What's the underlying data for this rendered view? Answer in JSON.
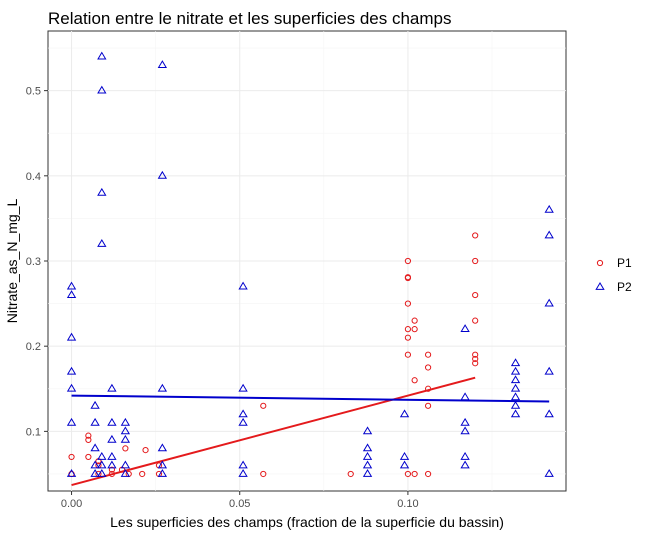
{
  "chart_data": {
    "type": "scatter",
    "title": "Relation entre le nitrate et les superficies des champs",
    "xlabel": "Les superficies des champs (fraction de la superficie du bassin)",
    "ylabel": "Nitrate_as_N_mg_L",
    "xlim": [
      -0.007,
      0.147
    ],
    "ylim": [
      0.03,
      0.57
    ],
    "x_ticks": [
      0.0,
      0.05,
      0.1
    ],
    "x_tick_labels": [
      "0.00",
      "0.05",
      "0.10"
    ],
    "y_ticks": [
      0.1,
      0.2,
      0.3,
      0.4,
      0.5
    ],
    "y_tick_labels": [
      "0.1",
      "0.2",
      "0.3",
      "0.4",
      "0.5"
    ],
    "grid": true,
    "legend_position": "right",
    "series": [
      {
        "name": "P1",
        "color": "#e41a1c",
        "marker": "circle",
        "points": [
          [
            0.0,
            0.05
          ],
          [
            0.0,
            0.07
          ],
          [
            0.005,
            0.07
          ],
          [
            0.005,
            0.09
          ],
          [
            0.005,
            0.095
          ],
          [
            0.008,
            0.06
          ],
          [
            0.008,
            0.065
          ],
          [
            0.008,
            0.05
          ],
          [
            0.012,
            0.05
          ],
          [
            0.012,
            0.055
          ],
          [
            0.015,
            0.055
          ],
          [
            0.016,
            0.08
          ],
          [
            0.017,
            0.05
          ],
          [
            0.021,
            0.05
          ],
          [
            0.022,
            0.078
          ],
          [
            0.026,
            0.05
          ],
          [
            0.026,
            0.06
          ],
          [
            0.057,
            0.13
          ],
          [
            0.057,
            0.05
          ],
          [
            0.083,
            0.05
          ],
          [
            0.1,
            0.3
          ],
          [
            0.1,
            0.28
          ],
          [
            0.1,
            0.281
          ],
          [
            0.1,
            0.25
          ],
          [
            0.1,
            0.22
          ],
          [
            0.1,
            0.21
          ],
          [
            0.1,
            0.19
          ],
          [
            0.1,
            0.05
          ],
          [
            0.102,
            0.23
          ],
          [
            0.102,
            0.22
          ],
          [
            0.102,
            0.16
          ],
          [
            0.102,
            0.05
          ],
          [
            0.106,
            0.19
          ],
          [
            0.106,
            0.175
          ],
          [
            0.106,
            0.15
          ],
          [
            0.106,
            0.13
          ],
          [
            0.106,
            0.05
          ],
          [
            0.12,
            0.33
          ],
          [
            0.12,
            0.3
          ],
          [
            0.12,
            0.26
          ],
          [
            0.12,
            0.23
          ],
          [
            0.12,
            0.19
          ],
          [
            0.12,
            0.185
          ],
          [
            0.12,
            0.18
          ]
        ],
        "trend": {
          "x": [
            0.0,
            0.12
          ],
          "y": [
            0.037,
            0.163
          ]
        }
      },
      {
        "name": "P2",
        "color": "#0000cc",
        "marker": "triangle",
        "points": [
          [
            0.0,
            0.27
          ],
          [
            0.0,
            0.26
          ],
          [
            0.0,
            0.21
          ],
          [
            0.0,
            0.17
          ],
          [
            0.0,
            0.15
          ],
          [
            0.0,
            0.11
          ],
          [
            0.0,
            0.05
          ],
          [
            0.009,
            0.54
          ],
          [
            0.009,
            0.5
          ],
          [
            0.009,
            0.38
          ],
          [
            0.009,
            0.32
          ],
          [
            0.007,
            0.13
          ],
          [
            0.007,
            0.11
          ],
          [
            0.007,
            0.08
          ],
          [
            0.007,
            0.06
          ],
          [
            0.007,
            0.05
          ],
          [
            0.009,
            0.07
          ],
          [
            0.009,
            0.06
          ],
          [
            0.009,
            0.05
          ],
          [
            0.012,
            0.15
          ],
          [
            0.012,
            0.11
          ],
          [
            0.012,
            0.09
          ],
          [
            0.012,
            0.07
          ],
          [
            0.012,
            0.06
          ],
          [
            0.016,
            0.11
          ],
          [
            0.016,
            0.1
          ],
          [
            0.016,
            0.09
          ],
          [
            0.016,
            0.06
          ],
          [
            0.016,
            0.05
          ],
          [
            0.027,
            0.53
          ],
          [
            0.027,
            0.4
          ],
          [
            0.027,
            0.15
          ],
          [
            0.027,
            0.08
          ],
          [
            0.027,
            0.06
          ],
          [
            0.027,
            0.05
          ],
          [
            0.051,
            0.27
          ],
          [
            0.051,
            0.15
          ],
          [
            0.051,
            0.12
          ],
          [
            0.051,
            0.11
          ],
          [
            0.051,
            0.06
          ],
          [
            0.051,
            0.05
          ],
          [
            0.088,
            0.1
          ],
          [
            0.088,
            0.08
          ],
          [
            0.088,
            0.07
          ],
          [
            0.088,
            0.06
          ],
          [
            0.088,
            0.05
          ],
          [
            0.099,
            0.12
          ],
          [
            0.099,
            0.07
          ],
          [
            0.099,
            0.06
          ],
          [
            0.117,
            0.22
          ],
          [
            0.117,
            0.14
          ],
          [
            0.117,
            0.11
          ],
          [
            0.117,
            0.1
          ],
          [
            0.117,
            0.07
          ],
          [
            0.117,
            0.06
          ],
          [
            0.132,
            0.18
          ],
          [
            0.132,
            0.17
          ],
          [
            0.132,
            0.16
          ],
          [
            0.132,
            0.15
          ],
          [
            0.132,
            0.14
          ],
          [
            0.132,
            0.13
          ],
          [
            0.132,
            0.12
          ],
          [
            0.142,
            0.36
          ],
          [
            0.142,
            0.33
          ],
          [
            0.142,
            0.25
          ],
          [
            0.142,
            0.17
          ],
          [
            0.142,
            0.12
          ],
          [
            0.142,
            0.05
          ]
        ],
        "trend": {
          "x": [
            0.0,
            0.142
          ],
          "y": [
            0.142,
            0.135
          ]
        }
      }
    ]
  }
}
